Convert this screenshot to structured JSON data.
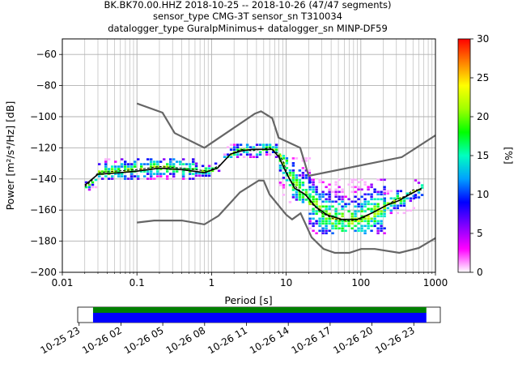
{
  "chart_data": {
    "type": "heatmap",
    "title_lines": [
      "BK.BK70.00.HHZ   2018-10-25 -- 2018-10-26  (47/47 segments)",
      "sensor_type CMG-3T sensor_sn T310034",
      "datalogger_type GuralpMinimus+ datalogger_sn MINP-DF59"
    ],
    "xlabel": "Period [s]",
    "ylabel": "Power [m²/s⁴/Hz] [dB]",
    "x_scale": "log",
    "xlim": [
      0.01,
      1000
    ],
    "ylim": [
      -200,
      -50
    ],
    "x_ticks": [
      {
        "value": 0.01,
        "label": "0.01"
      },
      {
        "value": 0.1,
        "label": "0.1"
      },
      {
        "value": 1,
        "label": "1"
      },
      {
        "value": 10,
        "label": "10"
      },
      {
        "value": 100,
        "label": "100"
      },
      {
        "value": 1000,
        "label": "1000"
      }
    ],
    "y_ticks": [
      {
        "value": -60,
        "label": "−60"
      },
      {
        "value": -80,
        "label": "−80"
      },
      {
        "value": -100,
        "label": "−100"
      },
      {
        "value": -120,
        "label": "−120"
      },
      {
        "value": -140,
        "label": "−140"
      },
      {
        "value": -160,
        "label": "−160"
      },
      {
        "value": -180,
        "label": "−180"
      },
      {
        "value": -200,
        "label": "−200"
      }
    ],
    "grid": true,
    "colorbar": {
      "label": "[%]",
      "range": [
        0,
        30
      ],
      "ticks": [
        {
          "value": 0,
          "label": "0"
        },
        {
          "value": 5,
          "label": "5"
        },
        {
          "value": 10,
          "label": "10"
        },
        {
          "value": 15,
          "label": "15"
        },
        {
          "value": 20,
          "label": "20"
        },
        {
          "value": 25,
          "label": "25"
        },
        {
          "value": 30,
          "label": "30"
        }
      ],
      "colors": [
        "#ffffff",
        "#ff00ff",
        "#8000ff",
        "#0000ff",
        "#00a0ff",
        "#00ffc0",
        "#00ff00",
        "#a0ff00",
        "#ffff00",
        "#ff8000",
        "#ff0000"
      ]
    },
    "noise_model_high": [
      [
        0.1,
        -91.5
      ],
      [
        0.22,
        -97.4
      ],
      [
        0.32,
        -110.5
      ],
      [
        0.8,
        -120
      ],
      [
        3.8,
        -98
      ],
      [
        4.6,
        -96.5
      ],
      [
        6.5,
        -101
      ],
      [
        7.9,
        -113.5
      ],
      [
        15.4,
        -120
      ],
      [
        20,
        -138
      ],
      [
        354,
        -126
      ],
      [
        1000,
        -112
      ]
    ],
    "noise_model_low": [
      [
        0.1,
        -168
      ],
      [
        0.17,
        -166.7
      ],
      [
        0.4,
        -166.7
      ],
      [
        0.8,
        -169.2
      ],
      [
        1.24,
        -163.7
      ],
      [
        2.4,
        -148.6
      ],
      [
        4.3,
        -141
      ],
      [
        5,
        -141.1
      ],
      [
        6,
        -150
      ],
      [
        10,
        -163
      ],
      [
        12,
        -166
      ],
      [
        15.6,
        -162.1
      ],
      [
        21.9,
        -177.5
      ],
      [
        31.6,
        -185
      ],
      [
        45,
        -187.5
      ],
      [
        70,
        -187.5
      ],
      [
        101,
        -185
      ],
      [
        154,
        -185
      ],
      [
        328,
        -187.5
      ],
      [
        600,
        -184.4
      ],
      [
        1000,
        -178
      ]
    ],
    "median": [
      [
        0.02,
        -145
      ],
      [
        0.025,
        -141
      ],
      [
        0.03,
        -136
      ],
      [
        0.05,
        -135
      ],
      [
        0.1,
        -134
      ],
      [
        0.2,
        -132
      ],
      [
        0.4,
        -133
      ],
      [
        0.6,
        -134
      ],
      [
        0.9,
        -135
      ],
      [
        1.3,
        -131
      ],
      [
        1.8,
        -124
      ],
      [
        2.5,
        -121
      ],
      [
        3.5,
        -122
      ],
      [
        4.5,
        -121
      ],
      [
        6,
        -120
      ],
      [
        7.5,
        -123
      ],
      [
        9,
        -128
      ],
      [
        11,
        -140
      ],
      [
        14,
        -146
      ],
      [
        18,
        -150
      ],
      [
        22,
        -156
      ],
      [
        30,
        -162
      ],
      [
        45,
        -166
      ],
      [
        70,
        -167
      ],
      [
        100,
        -166
      ],
      [
        150,
        -161
      ],
      [
        220,
        -157
      ],
      [
        300,
        -153
      ],
      [
        400,
        -151
      ],
      [
        500,
        -147
      ],
      [
        650,
        -147
      ]
    ],
    "mode": [
      [
        0.02,
        -144
      ],
      [
        0.03,
        -137
      ],
      [
        0.06,
        -136
      ],
      [
        0.1,
        -135
      ],
      [
        0.2,
        -133
      ],
      [
        0.4,
        -134
      ],
      [
        0.8,
        -136
      ],
      [
        1.2,
        -133
      ],
      [
        1.8,
        -124
      ],
      [
        2.5,
        -122
      ],
      [
        3.5,
        -121
      ],
      [
        5,
        -121
      ],
      [
        6.5,
        -121
      ],
      [
        8,
        -126
      ],
      [
        10,
        -136
      ],
      [
        13,
        -146
      ],
      [
        18,
        -150
      ],
      [
        25,
        -158
      ],
      [
        35,
        -163
      ],
      [
        55,
        -166
      ],
      [
        90,
        -166
      ],
      [
        140,
        -162
      ],
      [
        220,
        -157
      ],
      [
        320,
        -154
      ],
      [
        450,
        -150
      ],
      [
        650,
        -146
      ]
    ],
    "density_bands": [
      {
        "x": [
          0.02,
          0.03
        ],
        "ylow": -147,
        "yhigh": -140
      },
      {
        "x": [
          0.03,
          0.6
        ],
        "ylow": -140,
        "yhigh": -126
      },
      {
        "x": [
          0.6,
          1.3
        ],
        "ylow": -138,
        "yhigh": -130
      },
      {
        "x": [
          1.3,
          8
        ],
        "ylow": -126,
        "yhigh": -117
      },
      {
        "x": [
          8,
          20
        ],
        "ylow": -155,
        "yhigh": -125
      },
      {
        "x": [
          20,
          200
        ],
        "ylow": -175,
        "yhigh": -140
      },
      {
        "x": [
          200,
          520
        ],
        "ylow": -162,
        "yhigh": -147
      },
      {
        "x": [
          520,
          680
        ],
        "ylow": -152,
        "yhigh": -140
      }
    ],
    "coverage": {
      "tick_labels": [
        "10-25 23",
        "10-26 02",
        "10-26 05",
        "10-26 08",
        "10-26 11",
        "10-26 14",
        "10-26 17",
        "10-26 20",
        "10-26 23"
      ],
      "start_hour": 23,
      "data_from_hour": 24,
      "data_to_hour": 47.9,
      "axis_hours": [
        22.9,
        48.9
      ],
      "colors": {
        "top": "#008000",
        "bottom": "#0000ff"
      }
    }
  }
}
